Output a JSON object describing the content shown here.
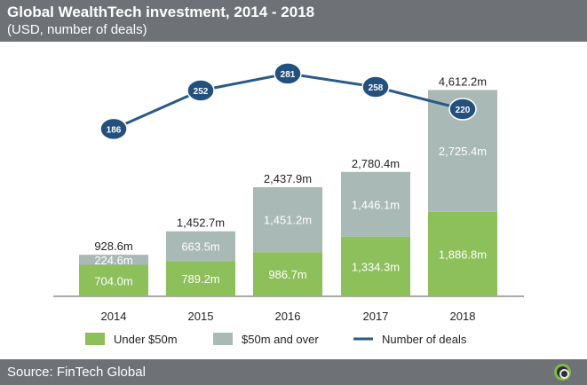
{
  "header": {
    "title": "Global WealthTech investment,  2014 - 2018",
    "subtitle": "(USD, number of deals)"
  },
  "footer": {
    "source": "Source: FinTech Global",
    "logo_icon": "fintech-global-logo-icon"
  },
  "colors": {
    "under": "#8dbf5a",
    "over": "#a9b9b5",
    "line": "#2a5a8a",
    "marker": "#23507d"
  },
  "chart_data": {
    "type": "bar",
    "stacked": true,
    "categories": [
      "2014",
      "2015",
      "2016",
      "2017",
      "2018"
    ],
    "series": [
      {
        "name": "Under $50m",
        "values": [
          704.0,
          789.2,
          986.7,
          1334.3,
          1886.8
        ],
        "labels": [
          "704.0m",
          "789.2m",
          "986.7m",
          "1,334.3m",
          "1,886.8m"
        ]
      },
      {
        "name": "$50m and over",
        "values": [
          224.6,
          663.5,
          1451.2,
          1446.1,
          2725.4
        ],
        "labels": [
          "224.6m",
          "663.5m",
          "1,451.2m",
          "1,446.1m",
          "2,725.4m"
        ]
      }
    ],
    "totals": [
      928.6,
      1452.7,
      2437.9,
      2780.4,
      4612.2
    ],
    "total_labels": [
      "928.6m",
      "1,452.7m",
      "2,437.9m",
      "2,780.4m",
      "4,612.2m"
    ],
    "line_series": {
      "name": "Number of deals",
      "values": [
        186,
        252,
        281,
        258,
        220
      ],
      "ylim": [
        0,
        300
      ]
    },
    "ylim": [
      0,
      4700
    ],
    "legend": [
      {
        "label": "Under $50m",
        "kind": "box",
        "series": "under"
      },
      {
        "label": "$50m and over",
        "kind": "box",
        "series": "over"
      },
      {
        "label": "Number of deals",
        "kind": "line",
        "series": "line"
      }
    ],
    "legend_position": "bottom",
    "grid": false
  }
}
